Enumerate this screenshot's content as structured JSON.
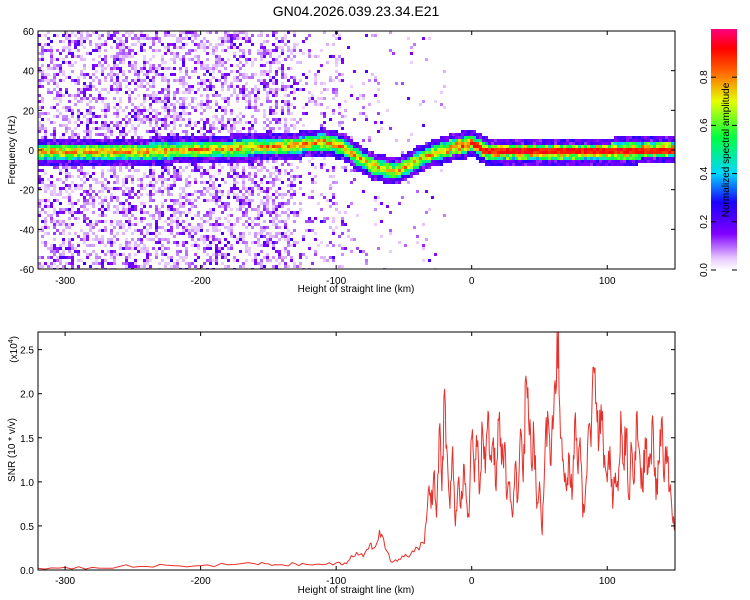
{
  "title": "GN04.2026.039.23.34.E21",
  "chart_data": [
    {
      "type": "heatmap",
      "xlabel": "Height of straight line (km)",
      "ylabel": "Frequency (Hz)",
      "xlim": [
        -320,
        150
      ],
      "ylim": [
        -60,
        60
      ],
      "xticks": [
        -300,
        -200,
        -100,
        0,
        100
      ],
      "yticks": [
        -60,
        -40,
        -20,
        0,
        20,
        40,
        60
      ],
      "ridge": {
        "x": [
          -320,
          -280,
          -240,
          -200,
          -160,
          -130,
          -110,
          -95,
          -85,
          -75,
          -65,
          -58,
          -50,
          -40,
          -30,
          -20,
          -10,
          0,
          10,
          30,
          60,
          100,
          150
        ],
        "y": [
          0,
          0,
          0,
          1,
          2,
          3,
          5,
          2,
          -3,
          -7,
          -9,
          -10,
          -8,
          -4,
          -1,
          1,
          3,
          4,
          0,
          0,
          0,
          0,
          1
        ]
      },
      "colorbar": {
        "label": "Normalized spectral amplitude",
        "range": [
          0.0,
          1.0
        ],
        "ticks": [
          0.0,
          0.2,
          0.4,
          0.6,
          0.8
        ],
        "tick_labels": [
          "0.0",
          "0.2",
          "0.4",
          "0.6",
          "0.8"
        ],
        "colormap": "rainbow (white-violet-blue-cyan-green-yellow-red-magenta)"
      }
    },
    {
      "type": "line",
      "xlabel": "Height of straight line (km)",
      "ylabel": "SNR (10 * v/v)",
      "scale_label": "(x10",
      "scale_exponent": "4",
      "xlim": [
        -320,
        150
      ],
      "ylim": [
        0,
        2.7
      ],
      "xticks": [
        -300,
        -200,
        -100,
        0,
        100
      ],
      "yticks": [
        0.0,
        0.5,
        1.0,
        1.5,
        2.0,
        2.5
      ],
      "ytick_labels": [
        "0.0",
        "0.5",
        "1.0",
        "1.5",
        "2.0",
        "2.5"
      ],
      "series": [
        {
          "color": "#e8302a",
          "x": [
            -320,
            -300,
            -280,
            -260,
            -240,
            -220,
            -200,
            -180,
            -160,
            -150,
            -140,
            -130,
            -120,
            -110,
            -100,
            -95,
            -90,
            -85,
            -80,
            -75,
            -72,
            -68,
            -65,
            -60,
            -55,
            -50,
            -45,
            -40,
            -35,
            -32,
            -30,
            -28,
            -26,
            -24,
            -22,
            -20,
            -18,
            -16,
            -14,
            -12,
            -10,
            -8,
            -6,
            -4,
            -2,
            0,
            2,
            4,
            6,
            8,
            10,
            12,
            14,
            16,
            18,
            20,
            22,
            24,
            26,
            28,
            30,
            32,
            34,
            36,
            38,
            40,
            42,
            44,
            46,
            48,
            50,
            52,
            54,
            56,
            58,
            60,
            62,
            64,
            66,
            68,
            70,
            72,
            74,
            76,
            78,
            80,
            82,
            84,
            86,
            88,
            90,
            92,
            94,
            96,
            98,
            100,
            102,
            104,
            106,
            108,
            110,
            112,
            114,
            116,
            118,
            120,
            122,
            124,
            126,
            128,
            130,
            132,
            134,
            136,
            138,
            140,
            142,
            144,
            146,
            148,
            150
          ],
          "y": [
            0.02,
            0.03,
            0.03,
            0.04,
            0.04,
            0.05,
            0.05,
            0.06,
            0.07,
            0.07,
            0.06,
            0.07,
            0.06,
            0.06,
            0.08,
            0.06,
            0.12,
            0.2,
            0.15,
            0.3,
            0.25,
            0.45,
            0.35,
            0.1,
            0.1,
            0.15,
            0.18,
            0.25,
            0.3,
            0.9,
            0.7,
            1.1,
            0.6,
            1.6,
            0.9,
            2.05,
            1.3,
            0.7,
            1.4,
            0.5,
            1.0,
            0.7,
            1.2,
            0.8,
            0.6,
            1.5,
            1.0,
            1.4,
            0.9,
            1.6,
            1.1,
            1.8,
            1.3,
            1.5,
            0.9,
            1.7,
            1.2,
            1.4,
            0.8,
            1.0,
            0.6,
            1.2,
            0.8,
            1.6,
            1.0,
            2.2,
            1.7,
            1.2,
            1.5,
            0.7,
            1.0,
            0.4,
            1.3,
            1.8,
            1.2,
            1.6,
            2.0,
            2.7,
            1.5,
            1.1,
            0.9,
            1.3,
            0.8,
            1.7,
            1.2,
            1.5,
            0.6,
            0.9,
            1.6,
            1.4,
            2.3,
            1.9,
            1.5,
            1.7,
            1.3,
            1.0,
            1.4,
            0.7,
            1.1,
            0.9,
            1.8,
            1.2,
            1.6,
            0.8,
            1.4,
            1.0,
            1.8,
            1.3,
            0.9,
            1.5,
            1.1,
            1.3,
            1.6,
            0.8,
            1.2,
            1.7,
            1.0,
            1.4,
            0.9,
            0.6,
            0.5
          ]
        }
      ]
    }
  ]
}
